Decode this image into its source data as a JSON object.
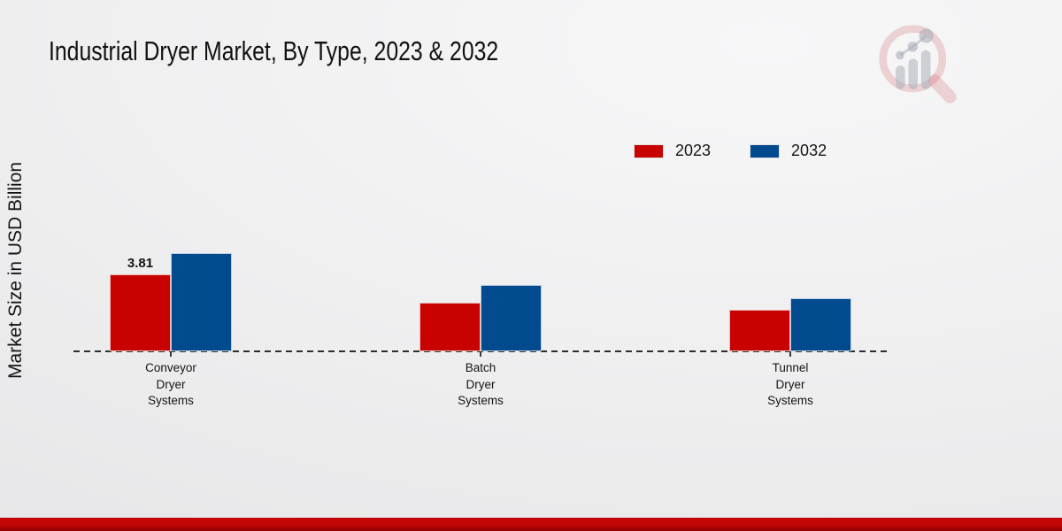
{
  "header": {
    "title": "Industrial Dryer Market, By Type, 2023 & 2032"
  },
  "logo": {
    "icon": "magnifier-bar-chart-watermark",
    "ring_color": "rgba(198,64,74,0.22)",
    "bars_color": "rgba(170,174,184,0.55)"
  },
  "chart_data": {
    "type": "bar",
    "title": "Industrial Dryer Market, By Type, 2023 & 2032",
    "xlabel": "",
    "ylabel": "Market Size in USD Billion",
    "categories": [
      "Conveyor Dryer Systems",
      "Batch Dryer Systems",
      "Tunnel Dryer Systems"
    ],
    "category_lines": [
      [
        "Conveyor",
        "Dryer",
        "Systems"
      ],
      [
        "Batch",
        "Dryer",
        "Systems"
      ],
      [
        "Tunnel",
        "Dryer",
        "Systems"
      ]
    ],
    "series": [
      {
        "name": "2023",
        "color": "#c80101",
        "values": [
          3.81,
          2.41,
          2.06
        ]
      },
      {
        "name": "2032",
        "color": "#004a8d",
        "values": [
          4.86,
          3.28,
          2.63
        ]
      }
    ],
    "value_labels": [
      {
        "series": "2023",
        "category_index": 0,
        "text": "3.81"
      }
    ],
    "ylim": [
      0,
      5.5
    ],
    "grid": false,
    "legend_position": "top-right",
    "baseline_style": "dashed"
  },
  "footer": {
    "color_top": "#c20505",
    "color_bottom": "#8e0101"
  }
}
